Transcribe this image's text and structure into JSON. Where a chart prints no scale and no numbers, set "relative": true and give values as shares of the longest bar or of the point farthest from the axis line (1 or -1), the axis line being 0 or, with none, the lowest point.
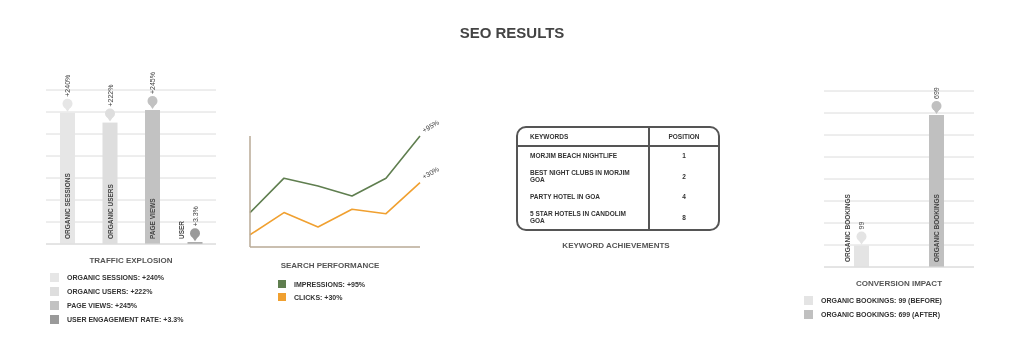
{
  "chart_data": [
    {
      "type": "bar",
      "title": "TRAFFIC EXPLOSION",
      "annotations": [
        "SEO RESULTS"
      ],
      "stacked": true,
      "grid": "y",
      "legend": "bottom",
      "categories": [
        "ORGANIC SESSIONS",
        "ORGANIC USERS",
        "PAGE VIEWS",
        "USER"
      ],
      "series": [
        {
          "name": "ORGANIC SESSIONS: +240%",
          "color": "#e6e6e6",
          "values": [
            240,
            null,
            null,
            null
          ],
          "value_labels": [
            "+240%",
            null,
            null,
            null
          ]
        },
        {
          "name": "ORGANIC USERS: +222%",
          "color": "#dedede",
          "values": [
            null,
            222,
            null,
            null
          ],
          "value_labels": [
            null,
            "+222%",
            null,
            null
          ]
        },
        {
          "name": "PAGE VIEWS: +245%",
          "color": "#c2c2c2",
          "values": [
            null,
            null,
            245,
            null
          ],
          "value_labels": [
            null,
            null,
            "+245%",
            null
          ]
        },
        {
          "name": "USER ENGAGEMENT RATE: +3.3%",
          "color": "#9a9a9a",
          "values": [
            null,
            null,
            null,
            3.3
          ],
          "value_labels": [
            null,
            null,
            null,
            "+3.3%"
          ]
        }
      ]
    },
    {
      "type": "line",
      "title": "SEARCH PERFORMANCE",
      "annotations": [
        "+95%",
        "+30%"
      ],
      "relative": true,
      "legend": "bottom",
      "categories": [
        null,
        null,
        null,
        null,
        null,
        null
      ],
      "series": [
        {
          "name": "IMPRESSIONS: +95%",
          "color": "#5f7e4f",
          "values": [
            0.31,
            0.62,
            0.55,
            0.46,
            0.62,
            1
          ]
        },
        {
          "name": "CLICKS: +30%",
          "color": "#f0a030",
          "values": [
            0.11,
            0.31,
            0.18,
            0.34,
            0.3,
            0.58
          ]
        }
      ]
    },
    {
      "type": "other",
      "title": "KEYWORD ACHIEVEMENTS",
      "xlabel": "KEYWORDS",
      "ylabel": "POSITION",
      "categories": [
        "MORJIM BEACH NIGHTLIFE",
        "BEST NIGHT CLUBS IN MORJIM GOA",
        "PARTY HOTEL IN GOA",
        "5 STAR HOTELS IN CANDOLIM GOA"
      ],
      "values": [
        1,
        2,
        4,
        8
      ],
      "data_labels": true
    },
    {
      "type": "bar",
      "title": "CONVERSION IMPACT",
      "stacked": true,
      "grid": "y",
      "legend": "bottom",
      "categories": [
        "ORGANIC BOOKINGS",
        "ORGANIC BOOKINGS"
      ],
      "series": [
        {
          "name": "ORGANIC BOOKINGS: 99 (BEFORE)",
          "color": "#e4e4e4",
          "values": [
            99,
            null
          ],
          "value_labels": [
            "99",
            null
          ]
        },
        {
          "name": "ORGANIC BOOKINGS: 699 (AFTER)",
          "color": "#c0c0c0",
          "values": [
            null,
            699
          ],
          "value_labels": [
            null,
            "699"
          ]
        }
      ]
    }
  ]
}
